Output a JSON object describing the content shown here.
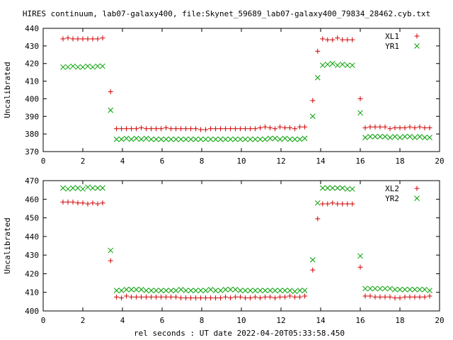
{
  "title": "HIRES continuum, lab07-galaxy400, file:Skynet_59689_lab07-galaxy400_79834_28462.cyb.txt",
  "xlabel": "rel seconds : UT date 2022-04-20T05:33:58.450",
  "colors": {
    "red": "#d00000",
    "green": "#00a000"
  },
  "chart_data": [
    {
      "type": "scatter",
      "ylabel": "Uncalibrated",
      "xlim": [
        0,
        20
      ],
      "ylim": [
        370,
        440
      ],
      "xticks": [
        0,
        2,
        4,
        6,
        8,
        10,
        12,
        14,
        16,
        18,
        20
      ],
      "yticks": [
        370,
        380,
        390,
        400,
        410,
        420,
        430,
        440
      ],
      "legend_placement": "top-right",
      "series": [
        {
          "name": "XL1",
          "marker": "plus",
          "color": "#d00000",
          "x": [
            1.0,
            1.25,
            1.5,
            1.75,
            2.0,
            2.25,
            2.5,
            2.75,
            3.0,
            3.4,
            3.7,
            3.95,
            4.2,
            4.45,
            4.7,
            4.95,
            5.2,
            5.45,
            5.7,
            5.95,
            6.2,
            6.45,
            6.7,
            6.95,
            7.2,
            7.45,
            7.7,
            7.95,
            8.2,
            8.45,
            8.7,
            8.95,
            9.2,
            9.45,
            9.7,
            9.95,
            10.2,
            10.45,
            10.7,
            10.95,
            11.2,
            11.45,
            11.7,
            11.95,
            12.2,
            12.45,
            12.7,
            12.95,
            13.2,
            13.6,
            13.85,
            14.1,
            14.35,
            14.6,
            14.85,
            15.1,
            15.35,
            15.6,
            16.0,
            16.25,
            16.5,
            16.75,
            17.0,
            17.25,
            17.5,
            17.75,
            18.0,
            18.25,
            18.5,
            18.75,
            19.0,
            19.25,
            19.5
          ],
          "y": [
            434,
            434.5,
            434,
            434,
            434,
            434,
            434,
            434,
            434.5,
            404,
            383,
            383,
            383,
            383,
            383,
            383.5,
            383,
            383,
            383,
            383,
            383.5,
            383,
            383,
            383,
            383,
            383,
            383,
            382.5,
            382.5,
            383,
            383,
            383,
            383,
            383,
            383,
            383,
            383,
            383,
            383,
            383.5,
            384,
            383.5,
            383,
            384,
            383.5,
            383.5,
            383,
            384,
            384,
            399,
            427,
            434,
            433.5,
            433.5,
            434.5,
            433.5,
            433.5,
            433.5,
            400,
            383.5,
            384,
            384,
            384,
            384,
            383,
            383.5,
            383.5,
            383.5,
            384,
            383.5,
            384,
            383.5,
            383.5
          ]
        },
        {
          "name": "YR1",
          "marker": "cross",
          "color": "#00a000",
          "x": [
            1.0,
            1.25,
            1.5,
            1.75,
            2.0,
            2.25,
            2.5,
            2.75,
            3.0,
            3.4,
            3.7,
            3.95,
            4.2,
            4.45,
            4.7,
            4.95,
            5.2,
            5.45,
            5.7,
            5.95,
            6.2,
            6.45,
            6.7,
            6.95,
            7.2,
            7.45,
            7.7,
            7.95,
            8.2,
            8.45,
            8.7,
            8.95,
            9.2,
            9.45,
            9.7,
            9.95,
            10.2,
            10.45,
            10.7,
            10.95,
            11.2,
            11.45,
            11.7,
            11.95,
            12.2,
            12.45,
            12.7,
            12.95,
            13.2,
            13.6,
            13.85,
            14.1,
            14.35,
            14.6,
            14.85,
            15.1,
            15.35,
            15.6,
            16.0,
            16.25,
            16.5,
            16.75,
            17.0,
            17.25,
            17.5,
            17.75,
            18.0,
            18.25,
            18.5,
            18.75,
            19.0,
            19.25,
            19.5
          ],
          "y": [
            418,
            418,
            418.5,
            418,
            418,
            418.5,
            418,
            418.5,
            418.5,
            393.5,
            377,
            377,
            377.5,
            377,
            377.5,
            377,
            377.5,
            377,
            377,
            377,
            377,
            377,
            377,
            377,
            377,
            377,
            377,
            377,
            377,
            377,
            377,
            377,
            377,
            377,
            377,
            377,
            377,
            377,
            377,
            377,
            377,
            377.5,
            377.5,
            377,
            377.5,
            377,
            377,
            377,
            377.5,
            390,
            412,
            419,
            419.5,
            420,
            419,
            419.5,
            419,
            419,
            392,
            378,
            378.5,
            378.5,
            378.5,
            378.5,
            378,
            378.5,
            378,
            378.5,
            378.5,
            378,
            378.5,
            378,
            378
          ]
        }
      ]
    },
    {
      "type": "scatter",
      "ylabel": "Uncalibrated",
      "xlim": [
        0,
        20
      ],
      "ylim": [
        400,
        470
      ],
      "xticks": [
        0,
        2,
        4,
        6,
        8,
        10,
        12,
        14,
        16,
        18,
        20
      ],
      "yticks": [
        400,
        410,
        420,
        430,
        440,
        450,
        460,
        470
      ],
      "legend_placement": "top-right",
      "series": [
        {
          "name": "XL2",
          "marker": "plus",
          "color": "#d00000",
          "x": [
            1.0,
            1.25,
            1.5,
            1.75,
            2.0,
            2.25,
            2.5,
            2.75,
            3.0,
            3.4,
            3.7,
            3.95,
            4.2,
            4.45,
            4.7,
            4.95,
            5.2,
            5.45,
            5.7,
            5.95,
            6.2,
            6.45,
            6.7,
            6.95,
            7.2,
            7.45,
            7.7,
            7.95,
            8.2,
            8.45,
            8.7,
            8.95,
            9.2,
            9.45,
            9.7,
            9.95,
            10.2,
            10.45,
            10.7,
            10.95,
            11.2,
            11.45,
            11.7,
            11.95,
            12.2,
            12.45,
            12.7,
            12.95,
            13.2,
            13.6,
            13.85,
            14.1,
            14.35,
            14.6,
            14.85,
            15.1,
            15.35,
            15.6,
            16.0,
            16.25,
            16.5,
            16.75,
            17.0,
            17.25,
            17.5,
            17.75,
            18.0,
            18.25,
            18.5,
            18.75,
            19.0,
            19.25,
            19.5
          ],
          "y": [
            458.5,
            458.5,
            458.5,
            458,
            458,
            457.5,
            458,
            457.5,
            458,
            427,
            407.5,
            407,
            408,
            407.5,
            407.5,
            407.5,
            407.5,
            407.5,
            407.5,
            407.5,
            407.5,
            407.5,
            407.5,
            407,
            407,
            407,
            407,
            407,
            407,
            407,
            407,
            407,
            407.5,
            407,
            407.5,
            407.5,
            407,
            407,
            407.5,
            407,
            407.5,
            407.5,
            407,
            407.5,
            407.5,
            408,
            407.5,
            407.5,
            408,
            422,
            449.5,
            457.5,
            457.5,
            458,
            457.5,
            457.5,
            457.5,
            457.5,
            423.5,
            408,
            408,
            407.5,
            407.5,
            407.5,
            407.5,
            407,
            407,
            407.5,
            407.5,
            407.5,
            407.5,
            407.5,
            408
          ]
        },
        {
          "name": "YR2",
          "marker": "cross",
          "color": "#00a000",
          "x": [
            1.0,
            1.25,
            1.5,
            1.75,
            2.0,
            2.25,
            2.5,
            2.75,
            3.0,
            3.4,
            3.7,
            3.95,
            4.2,
            4.45,
            4.7,
            4.95,
            5.2,
            5.45,
            5.7,
            5.95,
            6.2,
            6.45,
            6.7,
            6.95,
            7.2,
            7.45,
            7.7,
            7.95,
            8.2,
            8.45,
            8.7,
            8.95,
            9.2,
            9.45,
            9.7,
            9.95,
            10.2,
            10.45,
            10.7,
            10.95,
            11.2,
            11.45,
            11.7,
            11.95,
            12.2,
            12.45,
            12.7,
            12.95,
            13.2,
            13.6,
            13.85,
            14.1,
            14.35,
            14.6,
            14.85,
            15.1,
            15.35,
            15.6,
            16.0,
            16.25,
            16.5,
            16.75,
            17.0,
            17.25,
            17.5,
            17.75,
            18.0,
            18.25,
            18.5,
            18.75,
            19.0,
            19.25,
            19.5
          ],
          "y": [
            466,
            465.5,
            466,
            466,
            465.5,
            466.5,
            466,
            466,
            466,
            432.5,
            411,
            411,
            411.5,
            411.5,
            411.5,
            411.5,
            411,
            411,
            411,
            411,
            411,
            411,
            411,
            411.5,
            411,
            411,
            411,
            411,
            411,
            411.5,
            411,
            411,
            411.5,
            411.5,
            411.5,
            411,
            411,
            411,
            411,
            411,
            411,
            411,
            411,
            411,
            411,
            411,
            410.5,
            411,
            411,
            427.5,
            458,
            466,
            466,
            466,
            466,
            466,
            465.5,
            465.5,
            429.5,
            412,
            412,
            412,
            412,
            412,
            412,
            411.5,
            411.5,
            411.5,
            411.5,
            411.5,
            411.5,
            411.5,
            411
          ]
        }
      ]
    }
  ]
}
